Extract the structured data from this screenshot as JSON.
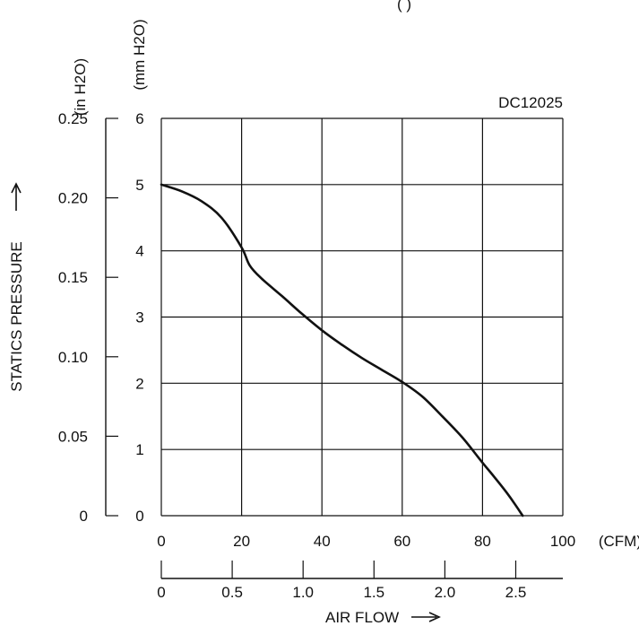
{
  "chart_data": {
    "type": "line",
    "title_fragment": "(          )",
    "model_label": "DC12025",
    "x_label": "AIR FLOW",
    "y_label": "STATICS PRESSURE",
    "x_axis_cfm": {
      "unit_label": "(CFM)",
      "range": [
        0,
        100
      ],
      "ticks": [
        "0",
        "20",
        "40",
        "60",
        "80",
        "100"
      ]
    },
    "x_axis_m3min": {
      "range": [
        0,
        2.832
      ],
      "ticks": [
        "0",
        "0.5",
        "1.0",
        "1.5",
        "2.0",
        "2.5"
      ]
    },
    "y_axis_mm": {
      "unit_label": "(mm H2O)",
      "range": [
        0,
        6
      ],
      "ticks": [
        "0",
        "1",
        "2",
        "3",
        "4",
        "5",
        "6"
      ]
    },
    "y_axis_in": {
      "unit_label": "(in H2O)",
      "range": [
        0,
        0.25
      ],
      "ticks": [
        "0",
        "0.05",
        "0.10",
        "0.15",
        "0.20",
        "0.25"
      ]
    },
    "grid": true,
    "series": [
      {
        "x": [
          0,
          5,
          10,
          15,
          20,
          22,
          25,
          30,
          35,
          40,
          45,
          50,
          55,
          60,
          65,
          70,
          75,
          80,
          83,
          86,
          88,
          90
        ],
        "y": [
          5.0,
          4.9,
          4.75,
          4.5,
          4.05,
          3.78,
          3.58,
          3.32,
          3.05,
          2.8,
          2.58,
          2.38,
          2.2,
          2.02,
          1.8,
          1.5,
          1.18,
          0.8,
          0.58,
          0.35,
          0.18,
          0.0
        ]
      }
    ]
  }
}
